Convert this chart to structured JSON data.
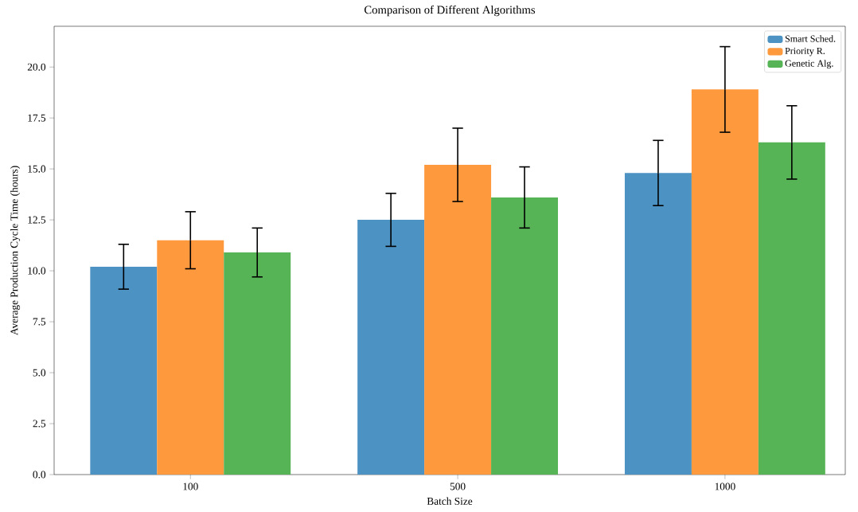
{
  "chart_data": {
    "type": "bar",
    "title": "Comparison of Different Algorithms",
    "xlabel": "Batch Size",
    "ylabel": "Average Production Cycle Time (hours)",
    "categories": [
      "100",
      "500",
      "1000"
    ],
    "series": [
      {
        "name": "Smart Sched.",
        "color": "#4c92c3",
        "values": [
          10.2,
          12.5,
          14.8
        ],
        "errors": [
          1.1,
          1.3,
          1.6
        ]
      },
      {
        "name": "Priority R.",
        "color": "#ff993e",
        "values": [
          11.5,
          15.2,
          18.9
        ],
        "errors": [
          1.4,
          1.8,
          2.1
        ]
      },
      {
        "name": "Genetic Alg.",
        "color": "#56b356",
        "values": [
          10.9,
          13.6,
          16.3
        ],
        "errors": [
          1.2,
          1.5,
          1.8
        ]
      }
    ],
    "ylim": [
      0,
      22
    ],
    "yticks": [
      {
        "value": 0,
        "label": "0.0"
      },
      {
        "value": 2.5,
        "label": "2.5"
      },
      {
        "value": 5,
        "label": "5.0"
      },
      {
        "value": 7.5,
        "label": "7.5"
      },
      {
        "value": 10,
        "label": "10.0"
      },
      {
        "value": 12.5,
        "label": "12.5"
      },
      {
        "value": 15,
        "label": "15.0"
      },
      {
        "value": 17.5,
        "label": "17.5"
      },
      {
        "value": 20,
        "label": "20.0"
      }
    ],
    "legend": "top right",
    "grid": false
  }
}
